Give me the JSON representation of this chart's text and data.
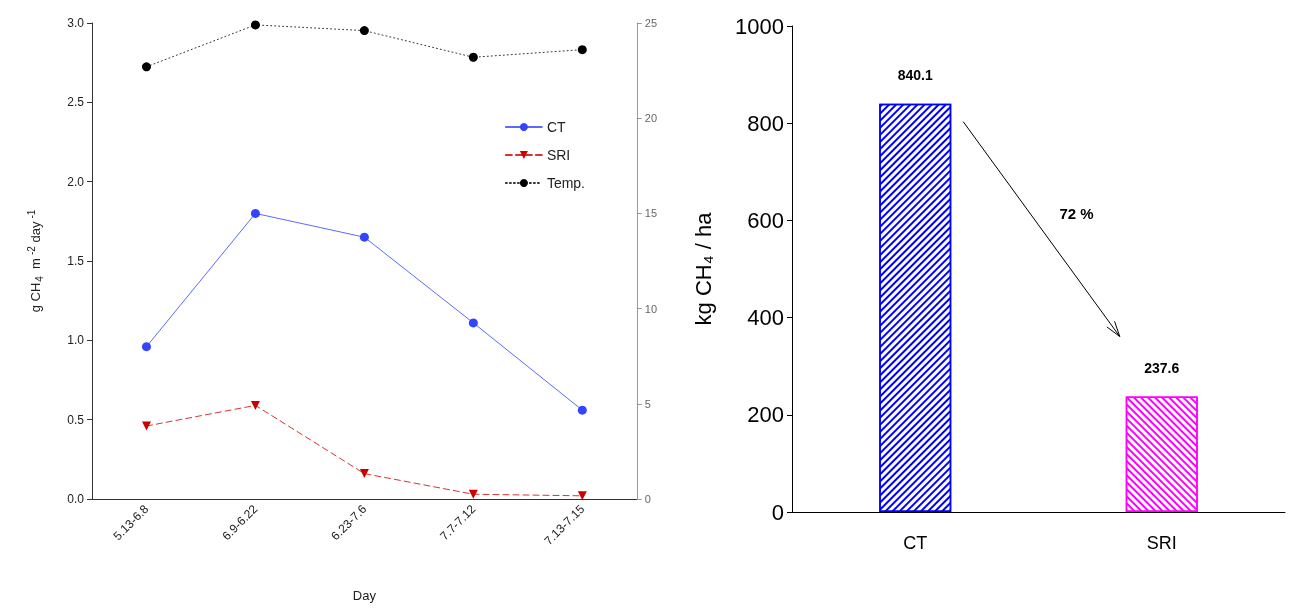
{
  "chart_data": [
    {
      "type": "line",
      "xlabel": "Day",
      "ylabel": "g CH$_{4}$  m$^{-2}$ day$^{-1}$",
      "categories": [
        "5.13-6.8",
        "6.9-6.22",
        "6.23-7.6",
        "7.7-7.12",
        "7.13-7.15"
      ],
      "series": [
        {
          "name": "CT",
          "color": "#3344ff",
          "marker": "circle",
          "line_style": "solid",
          "values": [
            0.96,
            1.8,
            1.65,
            1.11,
            0.56
          ]
        },
        {
          "name": "SRI",
          "color": "#cc0000",
          "marker": "triangle",
          "line_style": "dashed",
          "values": [
            0.46,
            0.59,
            0.16,
            0.03,
            0.02
          ]
        },
        {
          "name": "Temp.",
          "color": "#000000",
          "marker": "circle",
          "line_style": "dotted",
          "axis": "y2",
          "values": [
            22.7,
            24.9,
            24.6,
            23.2,
            23.6
          ]
        }
      ],
      "ylim": [
        0,
        3
      ],
      "yticks": [
        {
          "value": 0,
          "label": "0.0"
        },
        0.5,
        {
          "value": 1,
          "label": "1.0"
        },
        1.5,
        {
          "value": 2,
          "label": "2.0"
        },
        2.5,
        {
          "value": 3,
          "label": "3.0"
        }
      ],
      "y2lim": [
        0,
        25
      ],
      "y2ticks": [
        0,
        5,
        10,
        15,
        20,
        25
      ],
      "legend": "top right",
      "grid": false
    },
    {
      "type": "bar",
      "ylabel": "kg CH₄ / ha",
      "categories": [
        "CT",
        "SRI"
      ],
      "values": [
        840.1,
        237.6
      ],
      "colors": [
        "#0000ff",
        "#ff00ff"
      ],
      "ylim": [
        0,
        1000
      ],
      "yticks": [
        0,
        200,
        400,
        600,
        800,
        1000
      ],
      "data_labels": true,
      "grid": false,
      "annotations": [
        "72 %"
      ]
    }
  ]
}
